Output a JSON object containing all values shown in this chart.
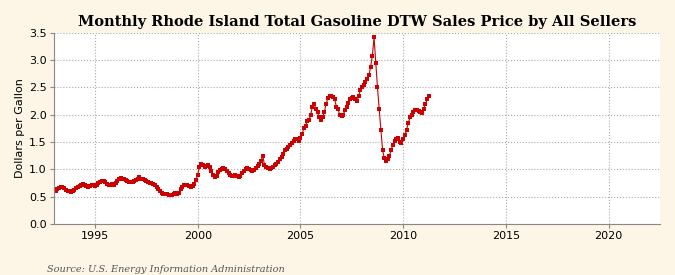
{
  "title": "Monthly Rhode Island Total Gasoline DTW Sales Price by All Sellers",
  "ylabel": "Dollars per Gallon",
  "source_text": "Source: U.S. Energy Information Administration",
  "fig_bg_color": "#fdf5e6",
  "plot_bg_color": "#ffffff",
  "marker_color": "#cc0000",
  "line_color": "#cc0000",
  "marker": "s",
  "marker_size": 2.5,
  "linewidth": 0.8,
  "xlim": [
    1993.0,
    2022.5
  ],
  "ylim": [
    0.0,
    3.5
  ],
  "yticks": [
    0.0,
    0.5,
    1.0,
    1.5,
    2.0,
    2.5,
    3.0,
    3.5
  ],
  "xticks": [
    1995,
    2000,
    2005,
    2010,
    2015,
    2020
  ],
  "title_fontsize": 10.5,
  "label_fontsize": 8,
  "tick_fontsize": 8,
  "source_fontsize": 7,
  "data": {
    "dates": [
      1993.0,
      1993.083,
      1993.167,
      1993.25,
      1993.333,
      1993.417,
      1993.5,
      1993.583,
      1993.667,
      1993.75,
      1993.833,
      1993.917,
      1994.0,
      1994.083,
      1994.167,
      1994.25,
      1994.333,
      1994.417,
      1994.5,
      1994.583,
      1994.667,
      1994.75,
      1994.833,
      1994.917,
      1995.0,
      1995.083,
      1995.167,
      1995.25,
      1995.333,
      1995.417,
      1995.5,
      1995.583,
      1995.667,
      1995.75,
      1995.833,
      1995.917,
      1996.0,
      1996.083,
      1996.167,
      1996.25,
      1996.333,
      1996.417,
      1996.5,
      1996.583,
      1996.667,
      1996.75,
      1996.833,
      1996.917,
      1997.0,
      1997.083,
      1997.167,
      1997.25,
      1997.333,
      1997.417,
      1997.5,
      1997.583,
      1997.667,
      1997.75,
      1997.833,
      1997.917,
      1998.0,
      1998.083,
      1998.167,
      1998.25,
      1998.333,
      1998.417,
      1998.5,
      1998.583,
      1998.667,
      1998.75,
      1998.833,
      1998.917,
      1999.0,
      1999.083,
      1999.167,
      1999.25,
      1999.333,
      1999.417,
      1999.5,
      1999.583,
      1999.667,
      1999.75,
      1999.833,
      1999.917,
      2000.0,
      2000.083,
      2000.167,
      2000.25,
      2000.333,
      2000.417,
      2000.5,
      2000.583,
      2000.667,
      2000.75,
      2000.833,
      2000.917,
      2001.0,
      2001.083,
      2001.167,
      2001.25,
      2001.333,
      2001.417,
      2001.5,
      2001.583,
      2001.667,
      2001.75,
      2001.833,
      2001.917,
      2002.0,
      2002.083,
      2002.167,
      2002.25,
      2002.333,
      2002.417,
      2002.5,
      2002.583,
      2002.667,
      2002.75,
      2002.833,
      2002.917,
      2003.0,
      2003.083,
      2003.167,
      2003.25,
      2003.333,
      2003.417,
      2003.5,
      2003.583,
      2003.667,
      2003.75,
      2003.833,
      2003.917,
      2004.0,
      2004.083,
      2004.167,
      2004.25,
      2004.333,
      2004.417,
      2004.5,
      2004.583,
      2004.667,
      2004.75,
      2004.833,
      2004.917,
      2005.0,
      2005.083,
      2005.167,
      2005.25,
      2005.333,
      2005.417,
      2005.5,
      2005.583,
      2005.667,
      2005.75,
      2005.833,
      2005.917,
      2006.0,
      2006.083,
      2006.167,
      2006.25,
      2006.333,
      2006.417,
      2006.5,
      2006.583,
      2006.667,
      2006.75,
      2006.833,
      2006.917,
      2007.0,
      2007.083,
      2007.167,
      2007.25,
      2007.333,
      2007.417,
      2007.5,
      2007.583,
      2007.667,
      2007.75,
      2007.833,
      2007.917,
      2008.0,
      2008.083,
      2008.167,
      2008.25,
      2008.333,
      2008.417,
      2008.5,
      2008.583,
      2008.667,
      2008.75,
      2008.833,
      2008.917,
      2009.0,
      2009.083,
      2009.167,
      2009.25,
      2009.333,
      2009.417,
      2009.5,
      2009.583,
      2009.667,
      2009.75,
      2009.833,
      2009.917,
      2010.0,
      2010.083,
      2010.167,
      2010.25,
      2010.333,
      2010.417,
      2010.5,
      2010.583,
      2010.667,
      2010.75,
      2010.833,
      2010.917,
      2011.0,
      2011.083,
      2011.167,
      2011.25
    ],
    "values": [
      0.6,
      0.61,
      0.63,
      0.65,
      0.67,
      0.68,
      0.66,
      0.62,
      0.6,
      0.6,
      0.59,
      0.6,
      0.62,
      0.65,
      0.68,
      0.7,
      0.72,
      0.73,
      0.71,
      0.69,
      0.68,
      0.7,
      0.72,
      0.71,
      0.7,
      0.72,
      0.75,
      0.77,
      0.78,
      0.78,
      0.76,
      0.73,
      0.71,
      0.72,
      0.73,
      0.72,
      0.75,
      0.78,
      0.82,
      0.84,
      0.83,
      0.82,
      0.8,
      0.78,
      0.76,
      0.76,
      0.77,
      0.78,
      0.8,
      0.82,
      0.85,
      0.83,
      0.82,
      0.81,
      0.79,
      0.77,
      0.75,
      0.74,
      0.73,
      0.72,
      0.68,
      0.64,
      0.6,
      0.57,
      0.55,
      0.55,
      0.54,
      0.53,
      0.52,
      0.52,
      0.54,
      0.56,
      0.55,
      0.57,
      0.63,
      0.68,
      0.72,
      0.72,
      0.71,
      0.7,
      0.68,
      0.7,
      0.73,
      0.8,
      0.9,
      1.05,
      1.1,
      1.08,
      1.05,
      1.06,
      1.08,
      1.05,
      0.97,
      0.9,
      0.85,
      0.88,
      0.95,
      0.98,
      1.0,
      1.02,
      1.0,
      0.97,
      0.93,
      0.9,
      0.88,
      0.88,
      0.9,
      0.88,
      0.85,
      0.88,
      0.93,
      0.97,
      1.0,
      1.02,
      1.0,
      0.98,
      0.96,
      0.98,
      1.03,
      1.06,
      1.1,
      1.15,
      1.25,
      1.08,
      1.05,
      1.02,
      1.0,
      1.02,
      1.04,
      1.07,
      1.1,
      1.13,
      1.18,
      1.22,
      1.28,
      1.35,
      1.38,
      1.4,
      1.45,
      1.48,
      1.52,
      1.55,
      1.55,
      1.52,
      1.58,
      1.65,
      1.75,
      1.8,
      1.88,
      1.9,
      2.0,
      2.15,
      2.2,
      2.1,
      2.05,
      1.95,
      1.9,
      1.95,
      2.05,
      2.2,
      2.3,
      2.35,
      2.35,
      2.32,
      2.28,
      2.15,
      2.1,
      2.0,
      1.98,
      2.0,
      2.08,
      2.15,
      2.22,
      2.28,
      2.3,
      2.32,
      2.28,
      2.25,
      2.35,
      2.45,
      2.5,
      2.55,
      2.6,
      2.65,
      2.72,
      2.88,
      3.08,
      3.42,
      2.95,
      2.5,
      2.1,
      1.72,
      1.35,
      1.2,
      1.15,
      1.18,
      1.25,
      1.35,
      1.45,
      1.52,
      1.55,
      1.58,
      1.5,
      1.48,
      1.55,
      1.62,
      1.72,
      1.85,
      1.95,
      2.0,
      2.05,
      2.08,
      2.08,
      2.07,
      2.05,
      2.03,
      2.1,
      2.2,
      2.28,
      2.35
    ]
  }
}
